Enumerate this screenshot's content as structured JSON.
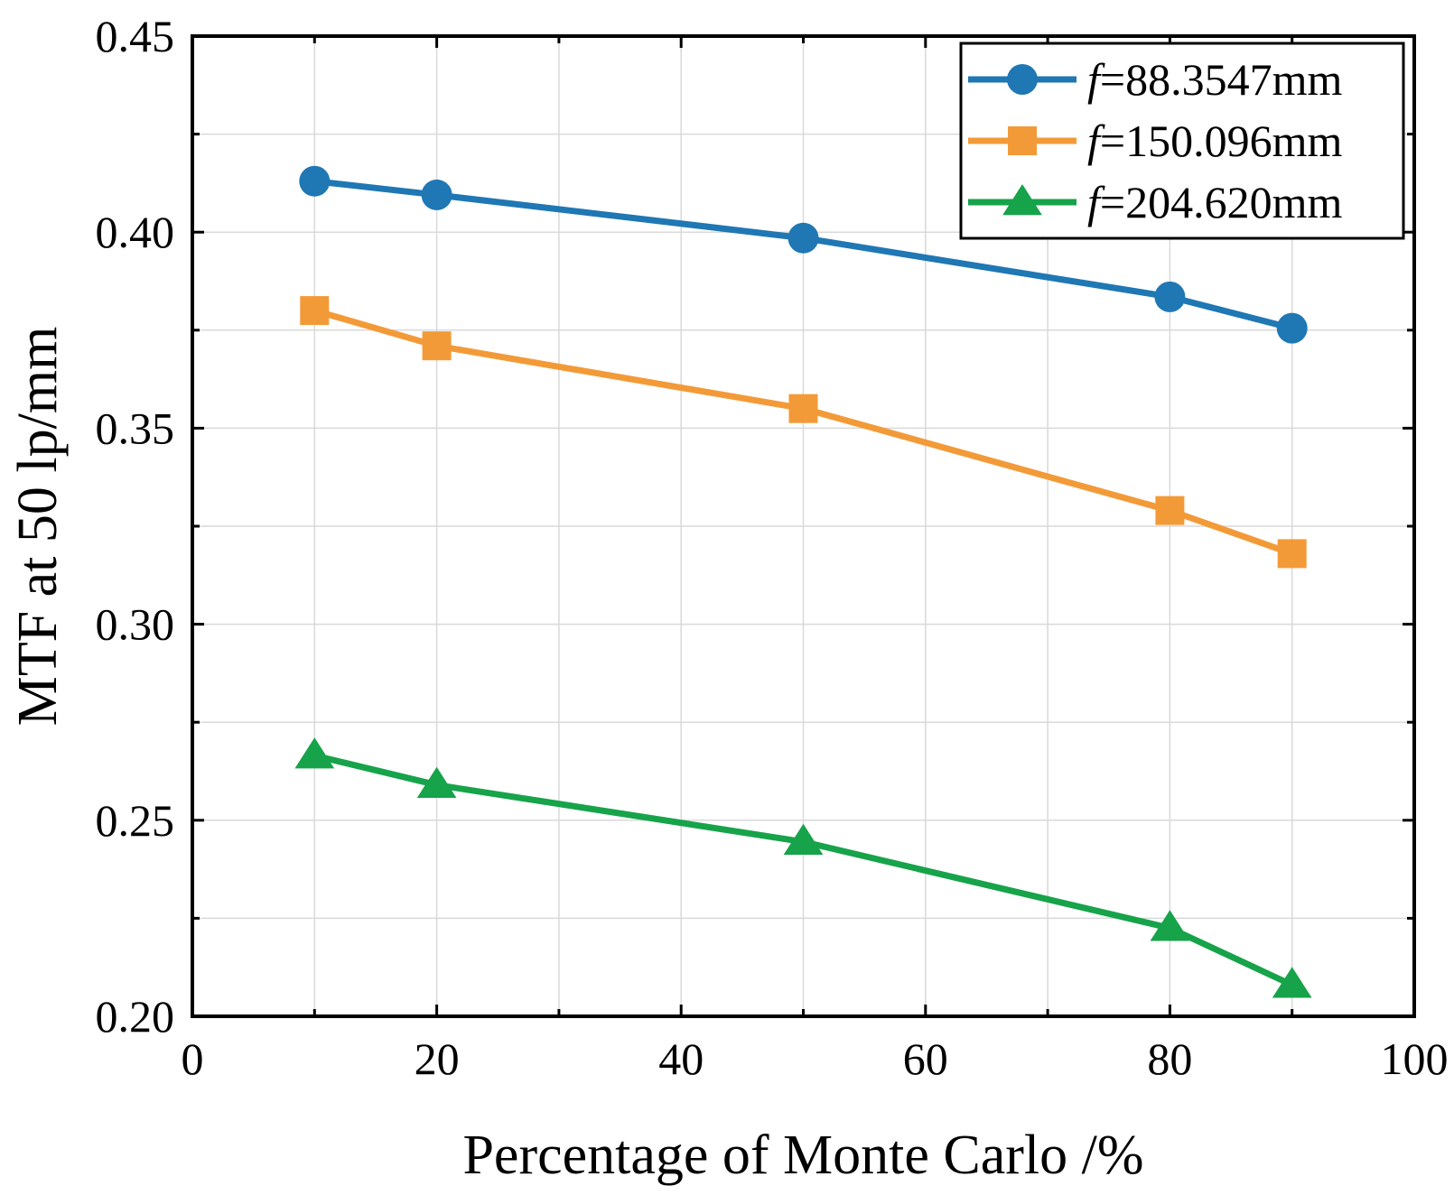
{
  "chart_data": {
    "type": "line",
    "title": "",
    "xlabel": "Percentage of Monte Carlo /%",
    "ylabel": "MTF at 50 lp/mm",
    "xlim": [
      0,
      100
    ],
    "ylim": [
      0.2,
      0.45
    ],
    "x_ticks": [
      0,
      20,
      40,
      60,
      80,
      100
    ],
    "x_tick_labels": [
      "0",
      "20",
      "40",
      "60",
      "80",
      "100"
    ],
    "y_ticks": [
      0.2,
      0.25,
      0.3,
      0.35,
      0.4,
      0.45
    ],
    "y_tick_labels": [
      "0.20",
      "0.25",
      "0.30",
      "0.35",
      "0.40",
      "0.45"
    ],
    "grid": true,
    "legend_position": "top-right",
    "x": [
      10,
      20,
      50,
      80,
      90
    ],
    "series": [
      {
        "name": "f=88.3547mm",
        "symbol": "f",
        "label_rest": "=88.3547mm",
        "marker": "circle",
        "color": "#1f77b4",
        "values": [
          0.413,
          0.4095,
          0.3985,
          0.3835,
          0.3755
        ]
      },
      {
        "name": "f=150.096mm",
        "symbol": "f",
        "label_rest": "=150.096mm",
        "marker": "square",
        "color": "#f39a38",
        "values": [
          0.38,
          0.371,
          0.355,
          0.329,
          0.318
        ]
      },
      {
        "name": "f=204.620mm",
        "symbol": "f",
        "label_rest": "=204.620mm",
        "marker": "triangle",
        "color": "#17a34a",
        "values": [
          0.2665,
          0.259,
          0.2445,
          0.2225,
          0.208
        ]
      }
    ]
  }
}
